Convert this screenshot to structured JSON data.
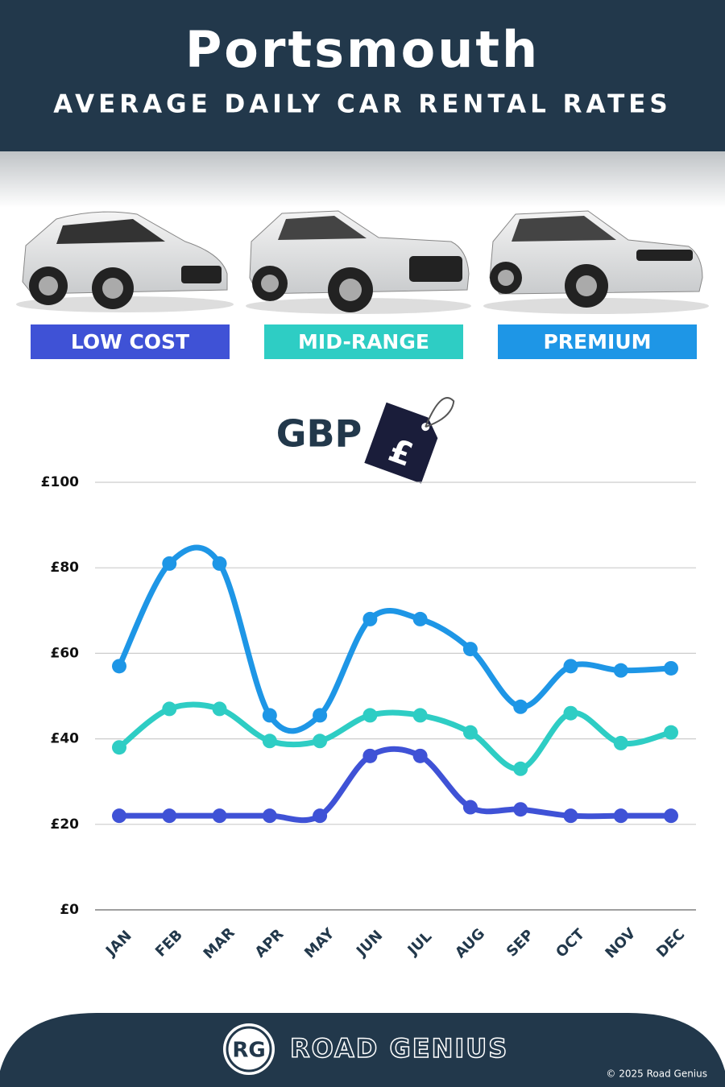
{
  "chart_data": {
    "type": "line",
    "title": "Portsmouth",
    "subtitle": "AVERAGE DAILY CAR RENTAL RATES",
    "currency": "GBP",
    "tag_symbol": "£",
    "categories": [
      "JAN",
      "FEB",
      "MAR",
      "APR",
      "MAY",
      "JUN",
      "JUL",
      "AUG",
      "SEP",
      "OCT",
      "NOV",
      "DEC"
    ],
    "series": [
      {
        "name": "LOW COST",
        "color": "#3f52d6",
        "values": [
          22,
          22,
          22,
          22,
          22,
          36,
          36,
          24,
          23.5,
          22,
          22,
          22
        ]
      },
      {
        "name": "MID-RANGE",
        "color": "#2ecdc4",
        "values": [
          38,
          47,
          47,
          39.5,
          39.5,
          45.5,
          45.5,
          41.5,
          33,
          46,
          39,
          41.5
        ]
      },
      {
        "name": "PREMIUM",
        "color": "#1e96e6",
        "values": [
          57,
          81,
          81,
          45.5,
          45.5,
          68,
          68,
          61,
          47.5,
          57,
          56,
          56.5
        ]
      }
    ],
    "ylim": [
      0,
      100
    ],
    "yticks": [
      {
        "value": 0,
        "label": "£0"
      },
      {
        "value": 20,
        "label": "£20"
      },
      {
        "value": 40,
        "label": "£40"
      },
      {
        "value": 60,
        "label": "£60"
      },
      {
        "value": 80,
        "label": "£80"
      },
      {
        "value": 100,
        "label": "£100"
      }
    ],
    "grid": true
  },
  "footer": {
    "logo": "RG",
    "brand": "ROAD GENIUS",
    "copyright": "© 2025 Road Genius"
  }
}
